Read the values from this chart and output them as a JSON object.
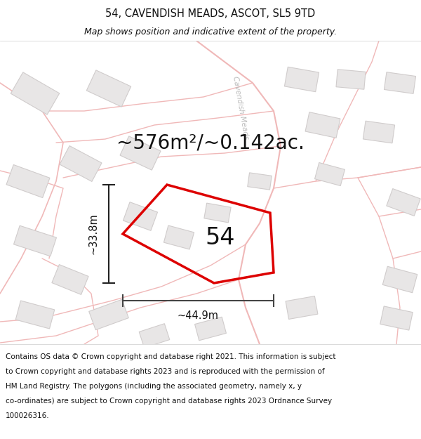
{
  "title": "54, CAVENDISH MEADS, ASCOT, SL5 9TD",
  "subtitle": "Map shows position and indicative extent of the property.",
  "area_text": "~576m²/~0.142ac.",
  "label_54": "54",
  "width_label": "~44.9m",
  "height_label": "~33.8m",
  "footer_text": "Contains OS data © Crown copyright and database right 2021. This information is subject to Crown copyright and database rights 2023 and is reproduced with the permission of HM Land Registry. The polygons (including the associated geometry, namely x, y co-ordinates) are subject to Crown copyright and database rights 2023 Ordnance Survey 100026316.",
  "map_bg": "#f7f6f6",
  "red_color": "#dd0000",
  "road_color": "#f0b8b8",
  "building_fill": "#e8e6e6",
  "building_stroke": "#d0cccc",
  "plot_polygon_x": [
    235,
    175,
    225,
    360,
    385,
    310
  ],
  "plot_polygon_y": [
    205,
    275,
    340,
    340,
    275,
    205
  ],
  "street_label": "Cavendish Meads",
  "title_fontsize": 10.5,
  "subtitle_fontsize": 9,
  "area_fontsize": 20,
  "label_fontsize": 24,
  "dim_fontsize": 10.5,
  "footer_fontsize": 7.5
}
